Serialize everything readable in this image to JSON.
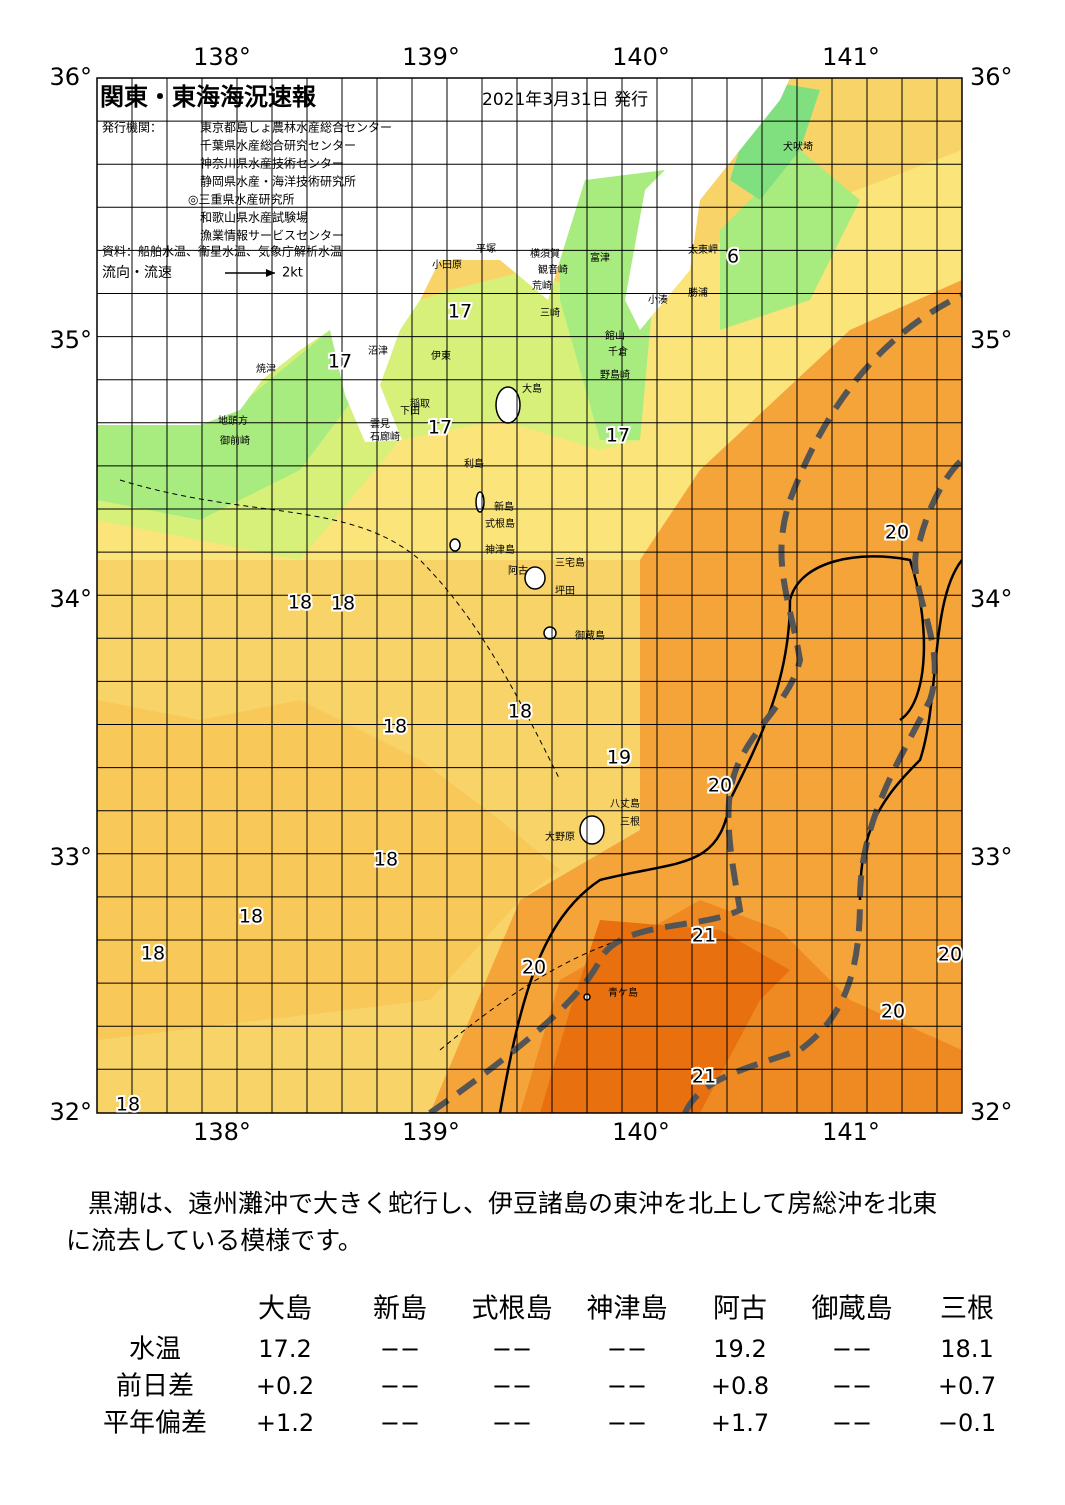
{
  "header": {
    "title": "関東・東海海況速報",
    "date": "2021年3月31日 発行",
    "publisher_label": "発行機関：",
    "publishers": [
      "東京都島しょ農林水産総合センター",
      "千葉県水産総合研究センター",
      "神奈川県水産技術センター",
      "静岡県水産・海洋技術研究所",
      "◎三重県水産研究所",
      "和歌山県水産試験場",
      "漁業情報サービスセンター"
    ],
    "source": "資料：船舶水温、衛星水温、気象庁解析水温",
    "legend_label": "流向・流速",
    "legend_speed": "2kt"
  },
  "axes": {
    "longitudes": [
      "138°",
      "139°",
      "140°",
      "141°"
    ],
    "latitudes": [
      "36°",
      "35°",
      "34°",
      "33°",
      "32°"
    ]
  },
  "places": [
    "犬吠埼",
    "太東岬",
    "小湊",
    "勝浦",
    "富津",
    "館山",
    "千倉",
    "野島崎",
    "横須賀",
    "観音崎",
    "荒崎",
    "三崎",
    "平塚",
    "小田原",
    "沼津",
    "伊東",
    "焼津",
    "稲取",
    "下田",
    "雲見",
    "石廊崎",
    "地頭方",
    "御前崎",
    "大島",
    "利島",
    "新島",
    "式根島",
    "神津島",
    "三宅島",
    "阿古",
    "坪田",
    "御蔵島",
    "八丈島",
    "三根",
    "大野原",
    "青ケ島"
  ],
  "temperatures": [
    "17",
    "17",
    "17",
    "17",
    "6",
    "18",
    "18",
    "18",
    "18",
    "18",
    "18",
    "18",
    "18",
    "19",
    "20",
    "20",
    "20",
    "20",
    "20",
    "21",
    "21"
  ],
  "comment": [
    "黒潮は、遠州灘沖で大きく蛇行し、伊豆諸島の東沖を北上して房総沖を北東",
    "に流去している模様です。"
  ],
  "table": {
    "columns": [
      "大島",
      "新島",
      "式根島",
      "神津島",
      "阿古",
      "御蔵島",
      "三根"
    ],
    "rows": [
      {
        "label": "水温",
        "values": [
          "17.2",
          "−−",
          "−−",
          "−−",
          "19.2",
          "−−",
          "18.1"
        ]
      },
      {
        "label": "前日差",
        "values": [
          "+0.2",
          "−−",
          "−−",
          "−−",
          "+0.8",
          "−−",
          "+0.7"
        ]
      },
      {
        "label": "平年偏差",
        "values": [
          "+1.2",
          "−−",
          "−−",
          "−−",
          "+1.7",
          "−−",
          "−0.1"
        ]
      }
    ]
  }
}
